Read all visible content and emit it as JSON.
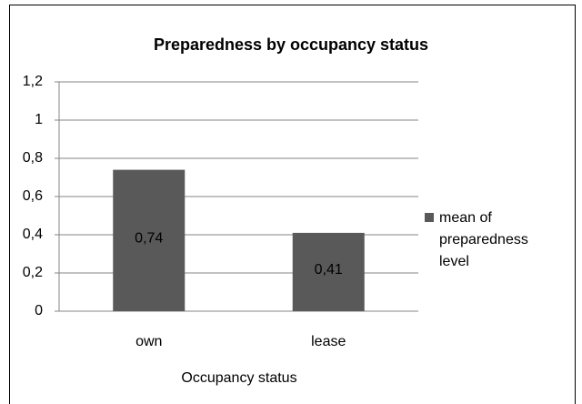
{
  "chart_data": {
    "type": "bar",
    "title": "Preparedness by occupancy status",
    "x_label": "Occupancy status",
    "categories": [
      "own",
      "lease"
    ],
    "series": [
      {
        "name": "mean of preparedness level",
        "color": "#595959",
        "values": [
          0.74,
          0.41
        ],
        "value_labels": [
          "0,74",
          "0,41"
        ]
      }
    ],
    "ylim": [
      0,
      1.2
    ],
    "yticks": [
      0,
      {
        "value": 0.2,
        "label": "0,2"
      },
      {
        "value": 0.4,
        "label": "0,4"
      },
      {
        "value": 0.6,
        "label": "0,6"
      },
      {
        "value": 0.8,
        "label": "0,8"
      },
      1,
      {
        "value": 1.2,
        "label": "1,2"
      }
    ],
    "grid": true,
    "legend": "right"
  }
}
